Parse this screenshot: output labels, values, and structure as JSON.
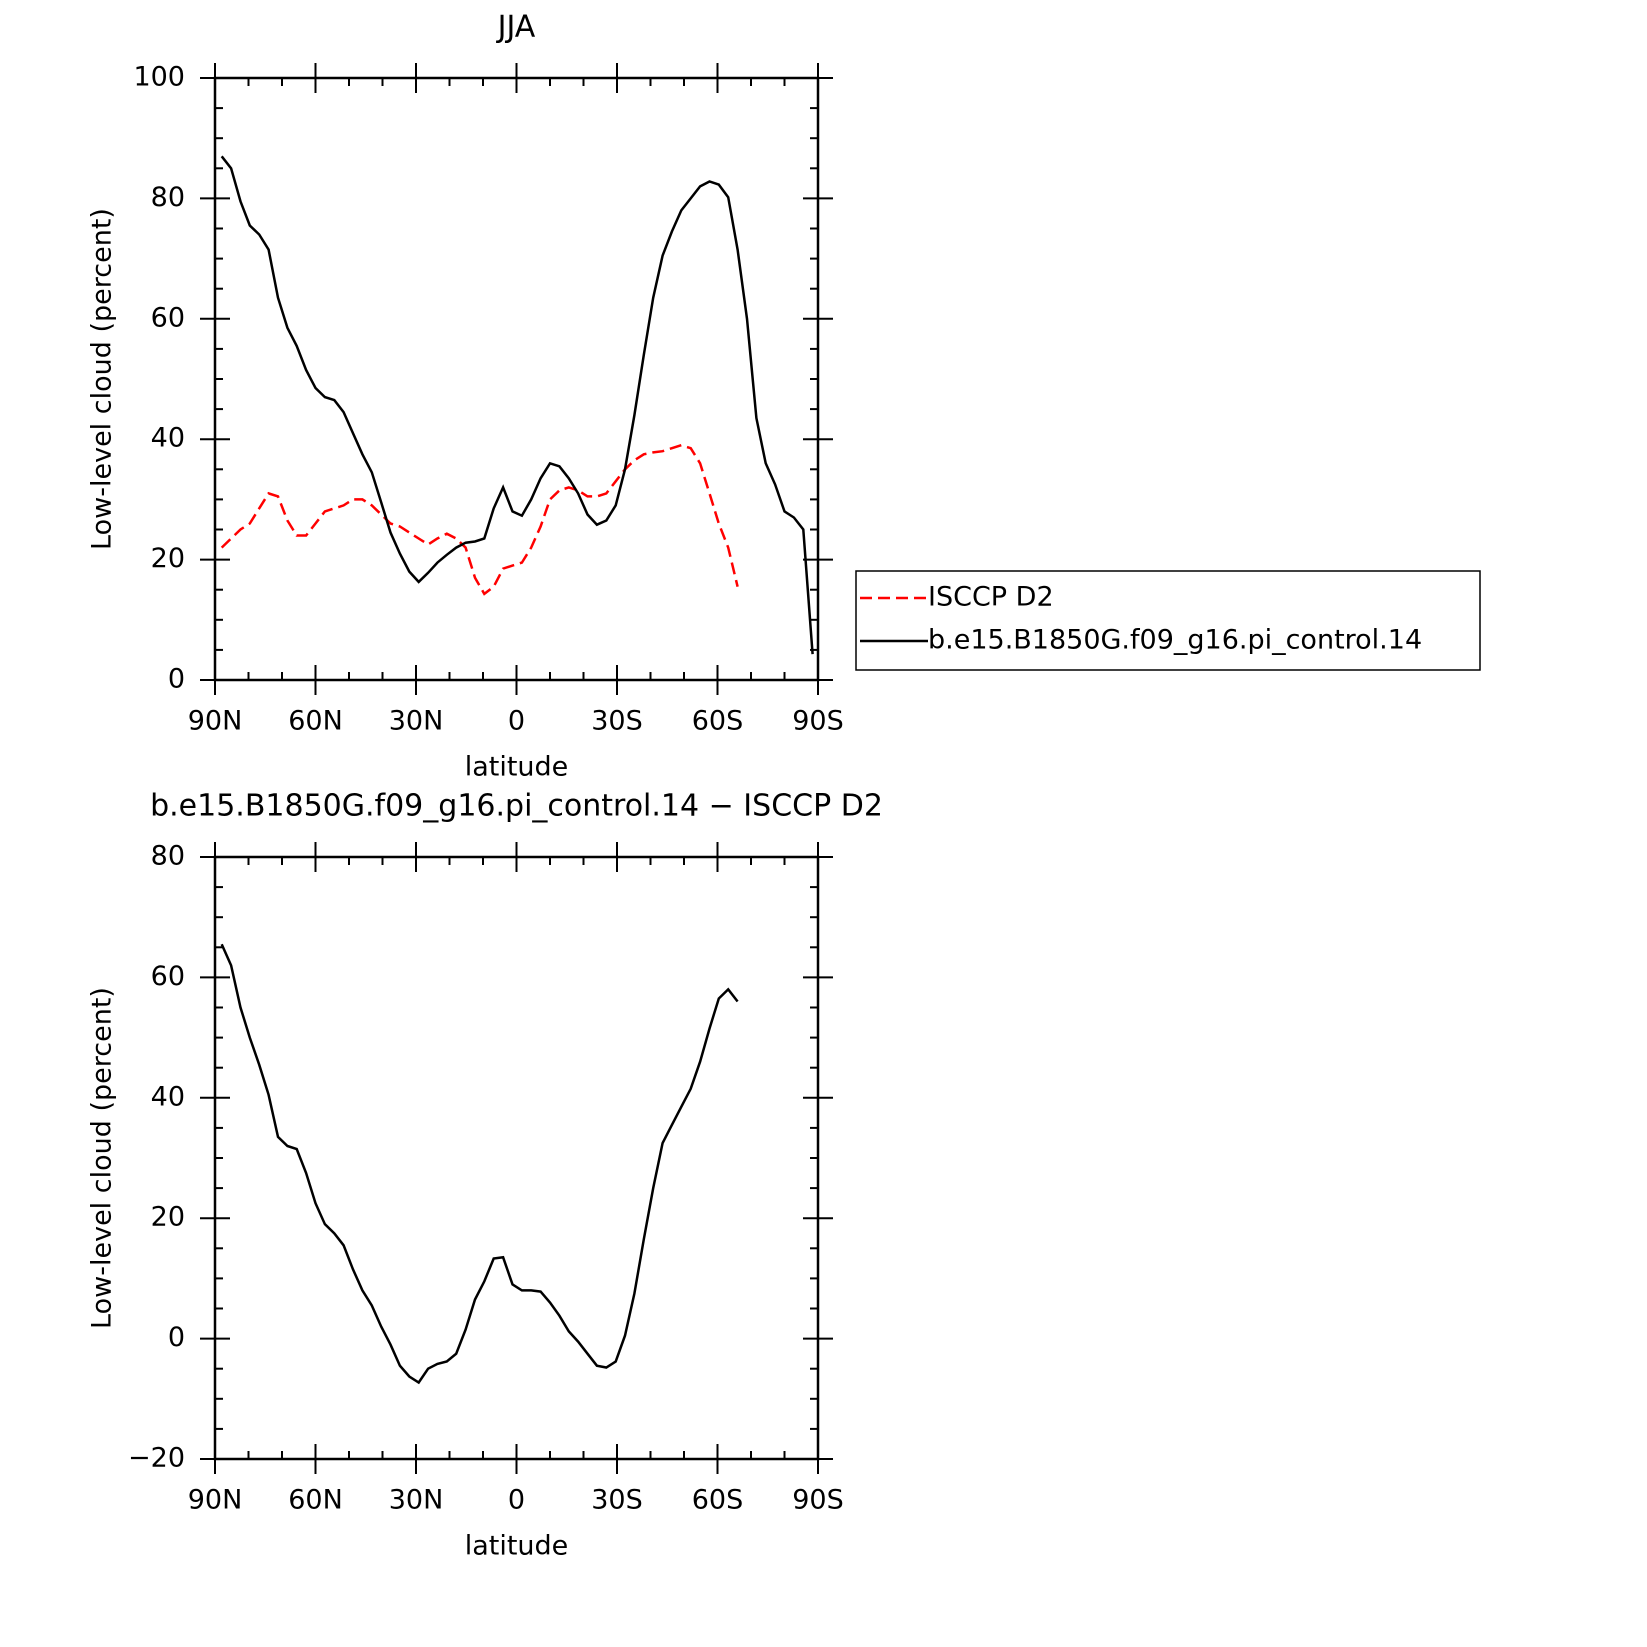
{
  "chart_data": [
    {
      "type": "line",
      "title": "JJA",
      "x_label": "latitude",
      "y_label": "Low-level cloud (percent)",
      "x": [
        88,
        85.2,
        82.4,
        79.6,
        76.8,
        74,
        71.2,
        68.4,
        65.6,
        62.8,
        60,
        57.2,
        54.4,
        51.6,
        48.8,
        46,
        43.2,
        40.4,
        37.6,
        34.8,
        32,
        29.2,
        26.4,
        23.6,
        20.8,
        18,
        15.2,
        12.4,
        9.6,
        6.8,
        4,
        1.2,
        -1.6,
        -4.4,
        -7.2,
        -10,
        -12.8,
        -15.6,
        -18.4,
        -21.2,
        -24,
        -26.8,
        -29.6,
        -32.4,
        -35.2,
        -38,
        -40.8,
        -43.6,
        -46.4,
        -49.2,
        -52,
        -54.8,
        -57.6,
        -60.4,
        -63.2,
        -66,
        -68.8,
        -71.6,
        -74.4,
        -77.2,
        -80,
        -82.8,
        -85.6,
        -88.4
      ],
      "series": [
        {
          "name": "ISCCP D2",
          "color": "#ff0000",
          "style": "dashed",
          "values": [
            22,
            23.5,
            25,
            26,
            28.5,
            31,
            30.5,
            26.5,
            24,
            24,
            26,
            28,
            28.5,
            29,
            30,
            30,
            29,
            27.5,
            26,
            25.5,
            24.5,
            23.5,
            22.5,
            23.5,
            24.3,
            23.5,
            22,
            17,
            14.3,
            15.5,
            18.5,
            19,
            19.5,
            22,
            25.5,
            30,
            31.5,
            32,
            31.5,
            30.5,
            30.5,
            31,
            33,
            35,
            36.5,
            37.5,
            37.8,
            38,
            38.5,
            39,
            38.5,
            36,
            31,
            26,
            22,
            15.5,
            null,
            null,
            null,
            null,
            null,
            null,
            null,
            null
          ]
        },
        {
          "name": "b.e15.B1850G.f09_g16.pi_control.14",
          "color": "#000000",
          "style": "solid",
          "values": [
            87,
            85,
            79.5,
            75.5,
            74,
            71.5,
            63.5,
            58.5,
            55.5,
            51.5,
            48.5,
            47,
            46.5,
            44.5,
            41,
            37.5,
            34.5,
            29.5,
            24.5,
            21,
            18,
            16.3,
            17.8,
            19.5,
            20.8,
            22,
            22.8,
            23,
            23.5,
            28.5,
            32,
            28,
            27.3,
            30,
            33.5,
            36,
            35.5,
            33.5,
            31,
            27.5,
            25.8,
            26.5,
            29,
            35,
            44,
            54,
            63.5,
            70.5,
            74.5,
            78,
            80,
            82,
            82.8,
            82.3,
            80.2,
            71.5,
            60,
            43.5,
            36,
            32.5,
            28,
            27,
            25,
            4.3
          ]
        }
      ],
      "xlim": [
        90,
        -90
      ],
      "xticks": [
        {
          "value": 90,
          "label": "90N"
        },
        {
          "value": 60,
          "label": "60N"
        },
        {
          "value": 30,
          "label": "30N"
        },
        0,
        {
          "value": -30,
          "label": "30S"
        },
        {
          "value": -60,
          "label": "60S"
        },
        {
          "value": -90,
          "label": "90S"
        }
      ],
      "ylim": [
        0,
        100
      ],
      "yticks": [
        0,
        20,
        40,
        60,
        80,
        100
      ],
      "legend": "right"
    },
    {
      "type": "line",
      "title": "b.e15.B1850G.f09_g16.pi_control.14 − ISCCP D2",
      "x_label": "latitude",
      "y_label": "Low-level cloud (percent)",
      "x": [
        88,
        85.2,
        82.4,
        79.6,
        76.8,
        74,
        71.2,
        68.4,
        65.6,
        62.8,
        60,
        57.2,
        54.4,
        51.6,
        48.8,
        46,
        43.2,
        40.4,
        37.6,
        34.8,
        32,
        29.2,
        26.4,
        23.6,
        20.8,
        18,
        15.2,
        12.4,
        9.6,
        6.8,
        4,
        1.2,
        -1.6,
        -4.4,
        -7.2,
        -10,
        -12.8,
        -15.6,
        -18.4,
        -21.2,
        -24,
        -26.8,
        -29.6,
        -32.4,
        -35.2,
        -38,
        -40.8,
        -43.6,
        -46.4,
        -49.2,
        -52,
        -54.8,
        -57.6,
        -60.4,
        -63.2,
        -66,
        -68.8,
        -71.6,
        -74.4,
        -77.2,
        -80,
        -82.8,
        -85.6,
        -88.4
      ],
      "series": [
        {
          "color": "#000000",
          "style": "solid",
          "values": [
            65.5,
            62,
            55,
            50,
            45.5,
            40.5,
            33.5,
            32,
            31.5,
            27.5,
            22.5,
            19,
            17.5,
            15.5,
            11.5,
            8,
            5.5,
            2,
            -1,
            -4.5,
            -6.3,
            -7.3,
            -5,
            -4.2,
            -3.8,
            -2.5,
            1.5,
            6.5,
            9.5,
            13.3,
            13.5,
            9,
            8,
            8,
            7.8,
            6,
            3.8,
            1.2,
            -0.5,
            -2.5,
            -4.5,
            -4.8,
            -3.8,
            0.5,
            7.5,
            16.5,
            25,
            32.5,
            35.5,
            38.5,
            41.5,
            46,
            51.5,
            56.5,
            58,
            56,
            null,
            null,
            null,
            null,
            null,
            null,
            null,
            null
          ]
        }
      ],
      "xlim": [
        90,
        -90
      ],
      "xticks": [
        {
          "value": 90,
          "label": "90N"
        },
        {
          "value": 60,
          "label": "60N"
        },
        {
          "value": 30,
          "label": "30N"
        },
        0,
        {
          "value": -30,
          "label": "30S"
        },
        {
          "value": -60,
          "label": "60S"
        },
        {
          "value": -90,
          "label": "90S"
        }
      ],
      "ylim": [
        -20,
        80
      ],
      "yticks": [
        {
          "value": -20,
          "label": "−20"
        },
        0,
        20,
        40,
        60,
        80
      ]
    }
  ]
}
